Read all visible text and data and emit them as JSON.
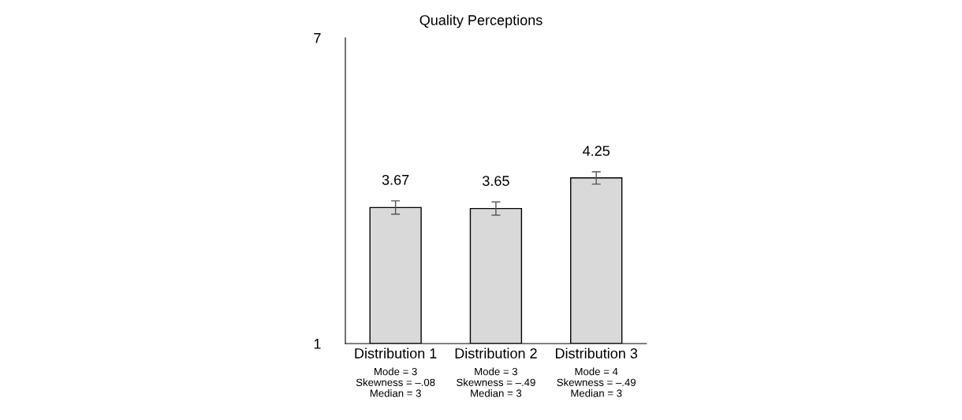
{
  "chart_data": {
    "type": "bar",
    "title": "Quality Perceptions",
    "categories": [
      "Distribution 1",
      "Distribution 2",
      "Distribution 3"
    ],
    "values": [
      3.67,
      3.65,
      4.25
    ],
    "errors": [
      0.13,
      0.13,
      0.12
    ],
    "color": "#d9d9d9",
    "data_labels": true,
    "ylim": [
      1,
      7
    ],
    "yticks": [
      1,
      7
    ],
    "grid": false,
    "annotations": [
      "Mode = 3\nSkewness = –.08\nMedian = 3",
      "Mode = 3\nSkewness = –.49\nMedian = 3",
      "Mode = 4\nSkewness = –.49\nMedian = 3"
    ]
  }
}
